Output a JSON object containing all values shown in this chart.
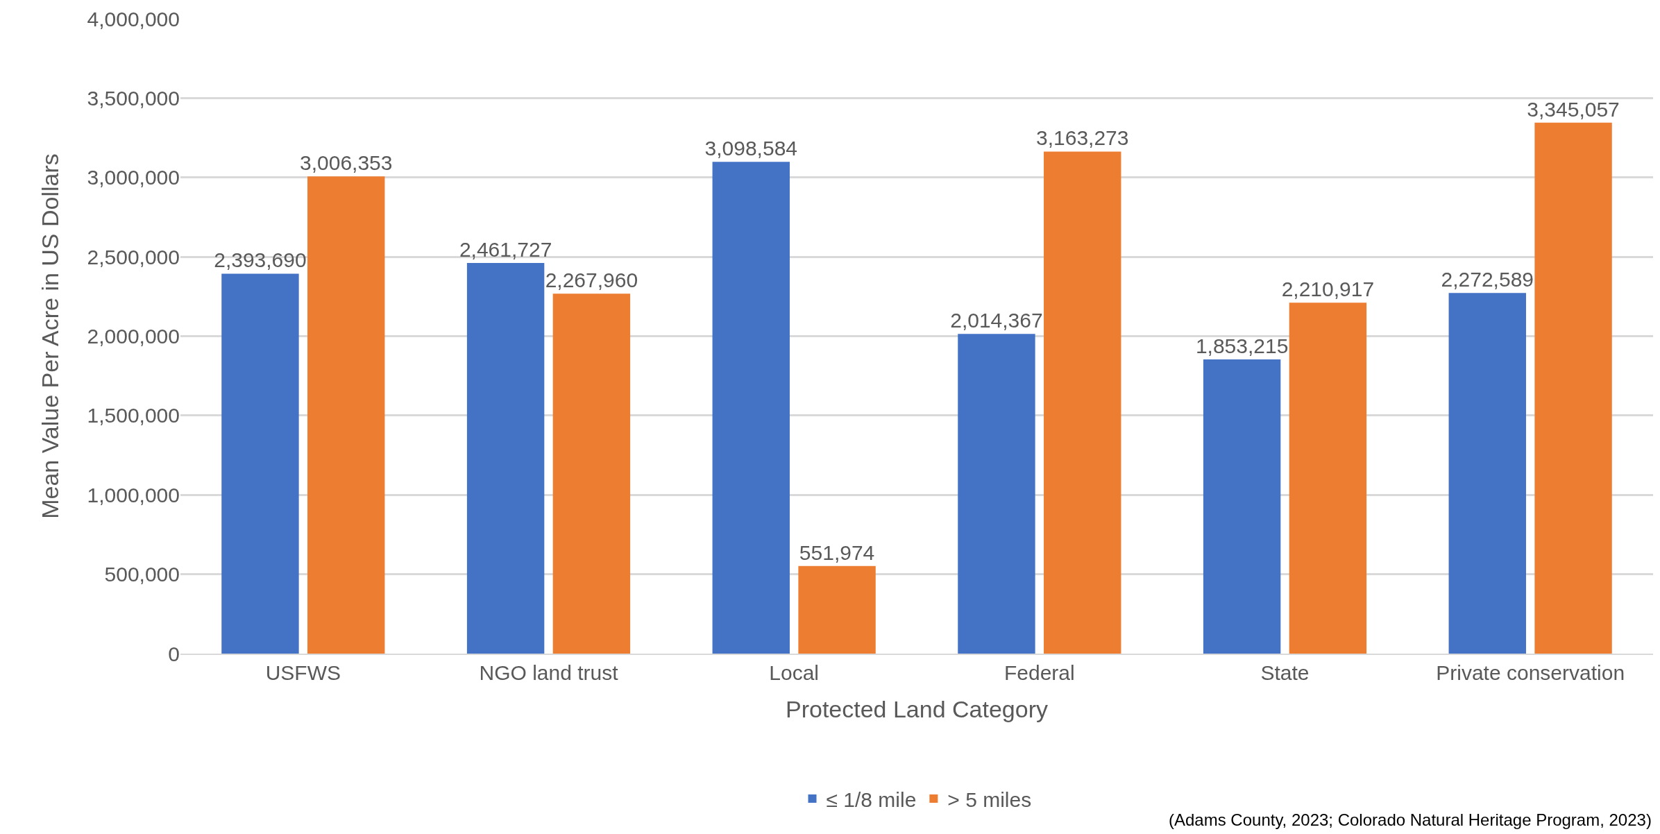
{
  "chart_data": {
    "type": "bar",
    "xlabel": "Protected Land Category",
    "ylabel": "Mean Value Per Acre in US Dollars",
    "categories": [
      "USFWS",
      "NGO land trust",
      "Local",
      "Federal",
      "State",
      "Private conservation"
    ],
    "series": [
      {
        "name": "≤ 1/8 mile",
        "color": "#4472c4",
        "values": [
          2393690,
          2461727,
          3098584,
          2014367,
          1853215,
          2272589
        ],
        "value_labels": [
          "2,393,690",
          "2,461,727",
          "3,098,584",
          "2,014,367",
          "1,853,215",
          "2,272,589"
        ]
      },
      {
        "name": "> 5 miles",
        "color": "#ed7d31",
        "values": [
          3006353,
          2267960,
          551974,
          3163273,
          2210917,
          3345057
        ],
        "value_labels": [
          "3,006,353",
          "2,267,960",
          "551,974",
          "3,163,273",
          "2,210,917",
          "3,345,057"
        ]
      }
    ],
    "ylim": [
      0,
      4000000
    ],
    "yticks": [
      {
        "value": 0,
        "label": "0"
      },
      {
        "value": 500000,
        "label": "500,000"
      },
      {
        "value": 1000000,
        "label": "1,000,000"
      },
      {
        "value": 1500000,
        "label": "1,500,000"
      },
      {
        "value": 2000000,
        "label": "2,000,000"
      },
      {
        "value": 2500000,
        "label": "2,500,000"
      },
      {
        "value": 3000000,
        "label": "3,000,000"
      },
      {
        "value": 3500000,
        "label": "3,500,000"
      },
      {
        "value": 4000000,
        "label": "4,000,000"
      }
    ],
    "grid": "y",
    "legend": "bottom",
    "annotations": [
      "(Adams County, 2023; Colorado Natural Heritage Program, 2023)"
    ]
  }
}
